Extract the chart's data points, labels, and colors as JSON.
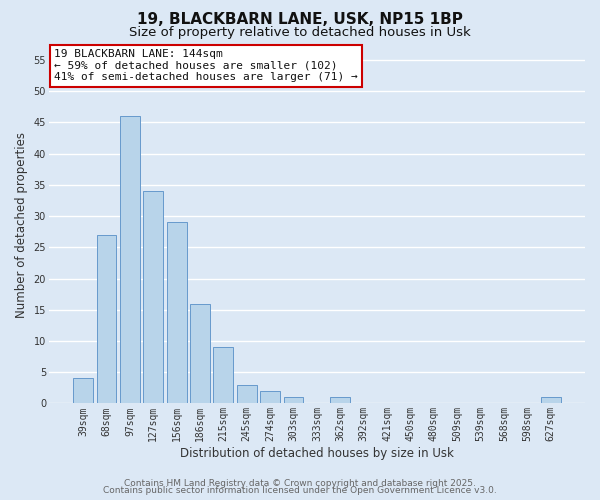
{
  "title_line1": "19, BLACKBARN LANE, USK, NP15 1BP",
  "title_line2": "Size of property relative to detached houses in Usk",
  "xlabel": "Distribution of detached houses by size in Usk",
  "ylabel": "Number of detached properties",
  "categories": [
    "39sqm",
    "68sqm",
    "97sqm",
    "127sqm",
    "156sqm",
    "186sqm",
    "215sqm",
    "245sqm",
    "274sqm",
    "303sqm",
    "333sqm",
    "362sqm",
    "392sqm",
    "421sqm",
    "450sqm",
    "480sqm",
    "509sqm",
    "539sqm",
    "568sqm",
    "598sqm",
    "627sqm"
  ],
  "values": [
    4,
    27,
    46,
    34,
    29,
    16,
    9,
    3,
    2,
    1,
    0,
    1,
    0,
    0,
    0,
    0,
    0,
    0,
    0,
    0,
    1
  ],
  "bar_color": "#b8d4ea",
  "bar_edge_color": "#6699cc",
  "background_color": "#dce8f5",
  "grid_color": "#ffffff",
  "ylim": [
    0,
    57
  ],
  "yticks": [
    0,
    5,
    10,
    15,
    20,
    25,
    30,
    35,
    40,
    45,
    50,
    55
  ],
  "annotation_title": "19 BLACKBARN LANE: 144sqm",
  "annotation_line2": "← 59% of detached houses are smaller (102)",
  "annotation_line3": "41% of semi-detached houses are larger (71) →",
  "annotation_box_color": "#ffffff",
  "annotation_box_edge": "#cc0000",
  "footer_line1": "Contains HM Land Registry data © Crown copyright and database right 2025.",
  "footer_line2": "Contains public sector information licensed under the Open Government Licence v3.0.",
  "title_fontsize": 11,
  "subtitle_fontsize": 9.5,
  "axis_label_fontsize": 8.5,
  "tick_fontsize": 7,
  "annotation_fontsize": 8,
  "footer_fontsize": 6.5
}
